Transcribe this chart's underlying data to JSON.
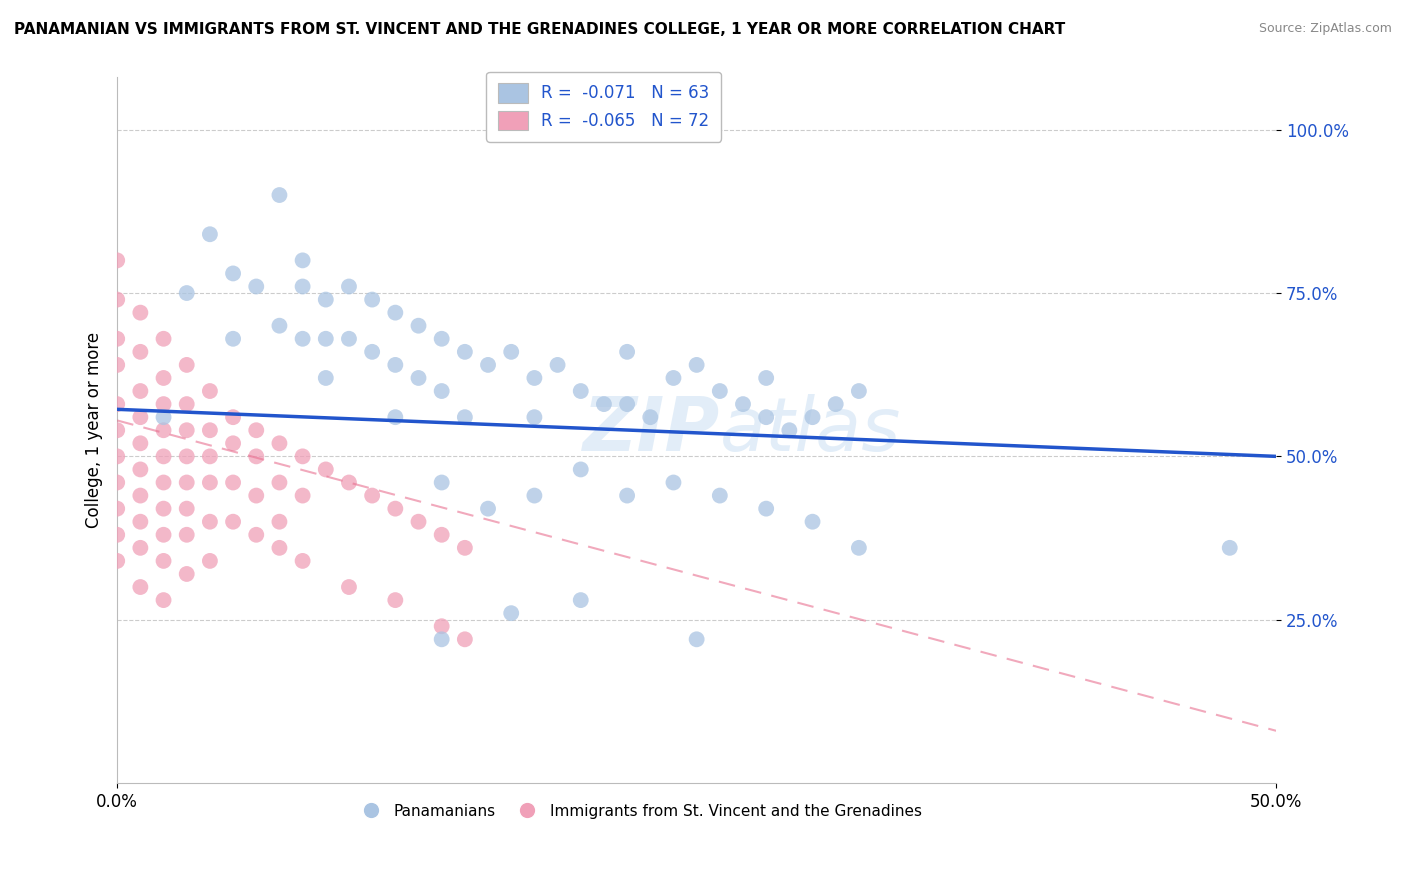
{
  "title": "PANAMANIAN VS IMMIGRANTS FROM ST. VINCENT AND THE GRENADINES COLLEGE, 1 YEAR OR MORE CORRELATION CHART",
  "source": "Source: ZipAtlas.com",
  "xmin": 0.0,
  "xmax": 0.5,
  "ymin": 0.0,
  "ymax": 1.08,
  "legend_blue_r": "-0.071",
  "legend_blue_n": "63",
  "legend_pink_r": "-0.065",
  "legend_pink_n": "72",
  "blue_color": "#aac4e2",
  "pink_color": "#f0a0b8",
  "trend_blue_color": "#2255cc",
  "trend_pink_color": "#e87090",
  "blue_trend_y0": 0.572,
  "blue_trend_y1": 0.5,
  "pink_trend_y0": 0.555,
  "pink_trend_y1": 0.08,
  "blue_scatter": [
    [
      0.02,
      0.56
    ],
    [
      0.03,
      0.75
    ],
    [
      0.04,
      0.84
    ],
    [
      0.05,
      0.78
    ],
    [
      0.05,
      0.68
    ],
    [
      0.06,
      0.76
    ],
    [
      0.07,
      0.9
    ],
    [
      0.07,
      0.7
    ],
    [
      0.08,
      0.8
    ],
    [
      0.08,
      0.68
    ],
    [
      0.08,
      0.76
    ],
    [
      0.09,
      0.74
    ],
    [
      0.09,
      0.68
    ],
    [
      0.09,
      0.62
    ],
    [
      0.1,
      0.76
    ],
    [
      0.1,
      0.68
    ],
    [
      0.11,
      0.74
    ],
    [
      0.11,
      0.66
    ],
    [
      0.12,
      0.72
    ],
    [
      0.12,
      0.64
    ],
    [
      0.12,
      0.56
    ],
    [
      0.13,
      0.7
    ],
    [
      0.13,
      0.62
    ],
    [
      0.14,
      0.68
    ],
    [
      0.14,
      0.6
    ],
    [
      0.15,
      0.66
    ],
    [
      0.15,
      0.56
    ],
    [
      0.16,
      0.64
    ],
    [
      0.17,
      0.66
    ],
    [
      0.18,
      0.62
    ],
    [
      0.18,
      0.56
    ],
    [
      0.19,
      0.64
    ],
    [
      0.2,
      0.6
    ],
    [
      0.21,
      0.58
    ],
    [
      0.22,
      0.66
    ],
    [
      0.22,
      0.58
    ],
    [
      0.23,
      0.56
    ],
    [
      0.24,
      0.62
    ],
    [
      0.25,
      0.64
    ],
    [
      0.26,
      0.6
    ],
    [
      0.27,
      0.58
    ],
    [
      0.28,
      0.56
    ],
    [
      0.28,
      0.62
    ],
    [
      0.29,
      0.54
    ],
    [
      0.3,
      0.56
    ],
    [
      0.31,
      0.58
    ],
    [
      0.32,
      0.6
    ],
    [
      0.14,
      0.46
    ],
    [
      0.16,
      0.42
    ],
    [
      0.18,
      0.44
    ],
    [
      0.2,
      0.48
    ],
    [
      0.22,
      0.44
    ],
    [
      0.24,
      0.46
    ],
    [
      0.26,
      0.44
    ],
    [
      0.28,
      0.42
    ],
    [
      0.3,
      0.4
    ],
    [
      0.32,
      0.36
    ],
    [
      0.14,
      0.22
    ],
    [
      0.17,
      0.26
    ],
    [
      0.2,
      0.28
    ],
    [
      0.25,
      0.22
    ],
    [
      0.48,
      0.36
    ]
  ],
  "pink_scatter": [
    [
      0.0,
      0.8
    ],
    [
      0.0,
      0.74
    ],
    [
      0.0,
      0.68
    ],
    [
      0.0,
      0.64
    ],
    [
      0.0,
      0.58
    ],
    [
      0.0,
      0.54
    ],
    [
      0.0,
      0.5
    ],
    [
      0.0,
      0.46
    ],
    [
      0.0,
      0.42
    ],
    [
      0.0,
      0.38
    ],
    [
      0.0,
      0.34
    ],
    [
      0.01,
      0.72
    ],
    [
      0.01,
      0.66
    ],
    [
      0.01,
      0.6
    ],
    [
      0.01,
      0.56
    ],
    [
      0.01,
      0.52
    ],
    [
      0.01,
      0.48
    ],
    [
      0.01,
      0.44
    ],
    [
      0.01,
      0.4
    ],
    [
      0.01,
      0.36
    ],
    [
      0.01,
      0.3
    ],
    [
      0.02,
      0.68
    ],
    [
      0.02,
      0.62
    ],
    [
      0.02,
      0.58
    ],
    [
      0.02,
      0.54
    ],
    [
      0.02,
      0.5
    ],
    [
      0.02,
      0.46
    ],
    [
      0.02,
      0.42
    ],
    [
      0.02,
      0.38
    ],
    [
      0.02,
      0.34
    ],
    [
      0.02,
      0.28
    ],
    [
      0.03,
      0.64
    ],
    [
      0.03,
      0.58
    ],
    [
      0.03,
      0.54
    ],
    [
      0.03,
      0.5
    ],
    [
      0.03,
      0.46
    ],
    [
      0.03,
      0.42
    ],
    [
      0.03,
      0.38
    ],
    [
      0.03,
      0.32
    ],
    [
      0.04,
      0.6
    ],
    [
      0.04,
      0.54
    ],
    [
      0.04,
      0.5
    ],
    [
      0.04,
      0.46
    ],
    [
      0.04,
      0.4
    ],
    [
      0.04,
      0.34
    ],
    [
      0.05,
      0.56
    ],
    [
      0.05,
      0.52
    ],
    [
      0.05,
      0.46
    ],
    [
      0.05,
      0.4
    ],
    [
      0.06,
      0.54
    ],
    [
      0.06,
      0.5
    ],
    [
      0.06,
      0.44
    ],
    [
      0.06,
      0.38
    ],
    [
      0.07,
      0.52
    ],
    [
      0.07,
      0.46
    ],
    [
      0.07,
      0.4
    ],
    [
      0.08,
      0.5
    ],
    [
      0.08,
      0.44
    ],
    [
      0.09,
      0.48
    ],
    [
      0.1,
      0.46
    ],
    [
      0.11,
      0.44
    ],
    [
      0.12,
      0.42
    ],
    [
      0.13,
      0.4
    ],
    [
      0.14,
      0.38
    ],
    [
      0.15,
      0.36
    ],
    [
      0.07,
      0.36
    ],
    [
      0.08,
      0.34
    ],
    [
      0.1,
      0.3
    ],
    [
      0.12,
      0.28
    ],
    [
      0.14,
      0.24
    ],
    [
      0.15,
      0.22
    ]
  ]
}
